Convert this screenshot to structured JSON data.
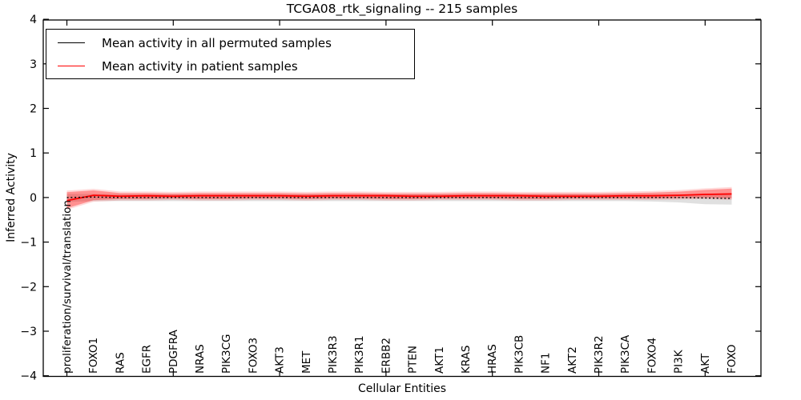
{
  "figure": {
    "title": "TCGA08_rtk_signaling -- 215 samples",
    "xlabel": "Cellular Entities",
    "ylabel": "Inferred Activity"
  },
  "legend": {
    "entries": [
      {
        "label": "Mean activity in all permuted samples",
        "color": "#000000"
      },
      {
        "label": "Mean activity in patient samples",
        "color": "#ff0000"
      }
    ]
  },
  "chart_data": {
    "type": "line",
    "title": "TCGA08_rtk_signaling -- 215 samples",
    "xlabel": "Cellular Entities",
    "ylabel": "Inferred Activity",
    "ylim": [
      -4,
      4
    ],
    "grid": false,
    "legend_position": "upper left",
    "yticks": [
      {
        "value": -4,
        "label": "−4"
      },
      {
        "value": -3,
        "label": "−3"
      },
      {
        "value": -2,
        "label": "−2"
      },
      {
        "value": -1,
        "label": "−1"
      },
      {
        "value": 0,
        "label": "0"
      },
      {
        "value": 1,
        "label": "1"
      },
      {
        "value": 2,
        "label": "2"
      },
      {
        "value": 3,
        "label": "3"
      },
      {
        "value": 4,
        "label": "4"
      }
    ],
    "categories": [
      "proliferation/survival/translation",
      "FOXO1",
      "RAS",
      "EGFR",
      "PDGFRA",
      "NRAS",
      "PIK3CG",
      "FOXO3",
      "AKT3",
      "MET",
      "PIK3R3",
      "PIK3R1",
      "ERBB2",
      "PTEN",
      "AKT1",
      "KRAS",
      "HRAS",
      "PIK3CB",
      "NF1",
      "AKT2",
      "PIK3R2",
      "PIK3CA",
      "FOXO4",
      "PI3K",
      "AKT",
      "FOXO"
    ],
    "series": [
      {
        "name": "Mean activity in all permuted samples",
        "color": "#000000",
        "line_style": "dotted",
        "band_color": "#000000",
        "band_opacity": 0.12,
        "values": [
          0.0,
          0.01,
          0.0,
          0.0,
          0.0,
          0.0,
          0.0,
          0.0,
          0.0,
          0.0,
          0.0,
          0.0,
          0.0,
          0.0,
          0.0,
          0.0,
          0.0,
          0.0,
          0.0,
          0.0,
          0.0,
          0.0,
          0.0,
          0.0,
          -0.01,
          -0.02
        ],
        "band_upper": [
          0.08,
          0.08,
          0.07,
          0.07,
          0.07,
          0.07,
          0.07,
          0.07,
          0.07,
          0.07,
          0.07,
          0.07,
          0.07,
          0.07,
          0.07,
          0.07,
          0.07,
          0.07,
          0.07,
          0.07,
          0.07,
          0.07,
          0.07,
          0.07,
          0.06,
          0.06
        ],
        "band_lower": [
          -0.1,
          -0.08,
          -0.08,
          -0.08,
          -0.08,
          -0.08,
          -0.08,
          -0.08,
          -0.08,
          -0.08,
          -0.08,
          -0.08,
          -0.08,
          -0.08,
          -0.08,
          -0.08,
          -0.08,
          -0.08,
          -0.08,
          -0.08,
          -0.08,
          -0.08,
          -0.09,
          -0.11,
          -0.15,
          -0.16
        ]
      },
      {
        "name": "Mean activity in patient samples",
        "color": "#ff0000",
        "line_style": "solid",
        "band_color": "#ff0000",
        "band_opacity": 0.33,
        "values": [
          -0.07,
          0.05,
          0.03,
          0.04,
          0.03,
          0.04,
          0.04,
          0.04,
          0.04,
          0.03,
          0.04,
          0.04,
          0.04,
          0.03,
          0.03,
          0.04,
          0.04,
          0.04,
          0.03,
          0.03,
          0.03,
          0.04,
          0.04,
          0.05,
          0.07,
          0.08
        ],
        "band_upper": [
          0.12,
          0.16,
          0.1,
          0.1,
          0.09,
          0.1,
          0.1,
          0.1,
          0.1,
          0.09,
          0.1,
          0.1,
          0.09,
          0.09,
          0.09,
          0.1,
          0.1,
          0.09,
          0.09,
          0.09,
          0.09,
          0.1,
          0.11,
          0.13,
          0.17,
          0.2
        ],
        "band_lower": [
          -0.24,
          -0.06,
          -0.03,
          -0.03,
          -0.02,
          -0.03,
          -0.03,
          -0.02,
          -0.02,
          -0.03,
          -0.02,
          -0.02,
          -0.03,
          -0.03,
          -0.02,
          -0.02,
          -0.02,
          -0.03,
          -0.03,
          -0.02,
          -0.02,
          -0.02,
          -0.02,
          -0.01,
          0.0,
          -0.02
        ]
      }
    ]
  }
}
